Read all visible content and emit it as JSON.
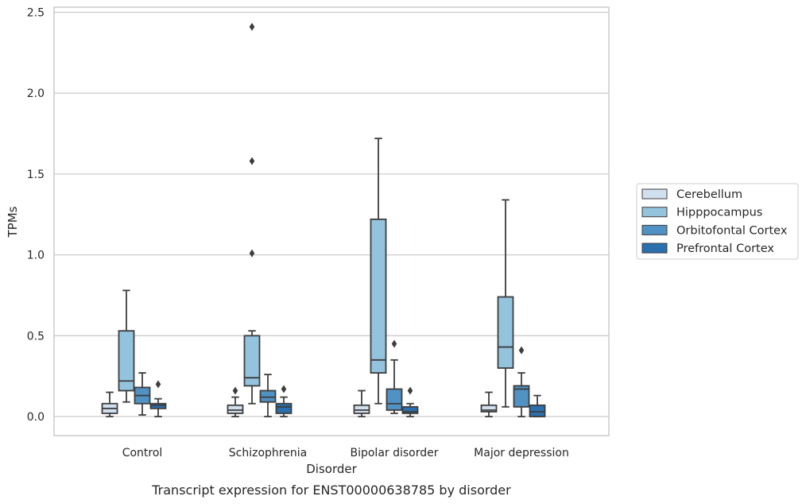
{
  "chart_data": {
    "type": "box",
    "title": "",
    "caption": "Transcript expression for ENST00000638785 by disorder",
    "xlabel": "Disorder",
    "ylabel": "TPMs",
    "ylim": [
      -0.11,
      2.54
    ],
    "yticks": [
      0.0,
      0.5,
      1.0,
      1.5,
      2.0,
      2.5
    ],
    "ytick_labels": [
      "0.0",
      "0.5",
      "1.0",
      "1.5",
      "2.0",
      "2.5"
    ],
    "grid": "horizontal",
    "legend_position": "right",
    "categories": [
      "Control",
      "Schizophrenia",
      "Bipolar disorder",
      "Major depression"
    ],
    "series": [
      {
        "name": "Cerebellum",
        "color": "#d1e0ef",
        "boxes": [
          {
            "whislo": 0.0,
            "q1": 0.02,
            "med": 0.05,
            "q3": 0.08,
            "whishi": 0.15,
            "fliers": []
          },
          {
            "whislo": 0.0,
            "q1": 0.02,
            "med": 0.04,
            "q3": 0.07,
            "whishi": 0.12,
            "fliers": [
              0.16
            ]
          },
          {
            "whislo": 0.0,
            "q1": 0.02,
            "med": 0.04,
            "q3": 0.07,
            "whishi": 0.16,
            "fliers": []
          },
          {
            "whislo": 0.0,
            "q1": 0.03,
            "med": 0.04,
            "q3": 0.07,
            "whishi": 0.15,
            "fliers": []
          }
        ]
      },
      {
        "name": "Hipppocampus",
        "color": "#94c3de",
        "boxes": [
          {
            "whislo": 0.09,
            "q1": 0.16,
            "med": 0.22,
            "q3": 0.53,
            "whishi": 0.78,
            "fliers": []
          },
          {
            "whislo": 0.08,
            "q1": 0.19,
            "med": 0.24,
            "q3": 0.5,
            "whishi": 0.53,
            "fliers": [
              1.01,
              1.58,
              2.41
            ]
          },
          {
            "whislo": 0.08,
            "q1": 0.27,
            "med": 0.35,
            "q3": 1.22,
            "whishi": 1.72,
            "fliers": []
          },
          {
            "whislo": 0.06,
            "q1": 0.3,
            "med": 0.43,
            "q3": 0.74,
            "whishi": 1.34,
            "fliers": []
          }
        ]
      },
      {
        "name": "Orbitofontal Cortex",
        "color": "#4f92c3",
        "boxes": [
          {
            "whislo": 0.01,
            "q1": 0.08,
            "med": 0.13,
            "q3": 0.18,
            "whishi": 0.27,
            "fliers": []
          },
          {
            "whislo": 0.0,
            "q1": 0.09,
            "med": 0.12,
            "q3": 0.16,
            "whishi": 0.26,
            "fliers": []
          },
          {
            "whislo": 0.02,
            "q1": 0.04,
            "med": 0.08,
            "q3": 0.17,
            "whishi": 0.35,
            "fliers": [
              0.45
            ]
          },
          {
            "whislo": 0.0,
            "q1": 0.06,
            "med": 0.17,
            "q3": 0.19,
            "whishi": 0.27,
            "fliers": [
              0.41
            ]
          }
        ]
      },
      {
        "name": "Prefrontal Cortex",
        "color": "#2a70ae",
        "boxes": [
          {
            "whislo": 0.0,
            "q1": 0.05,
            "med": 0.07,
            "q3": 0.08,
            "whishi": 0.11,
            "fliers": [
              0.2
            ]
          },
          {
            "whislo": 0.0,
            "q1": 0.02,
            "med": 0.06,
            "q3": 0.08,
            "whishi": 0.12,
            "fliers": [
              0.17
            ]
          },
          {
            "whislo": 0.0,
            "q1": 0.02,
            "med": 0.03,
            "q3": 0.06,
            "whishi": 0.08,
            "fliers": [
              0.16
            ]
          },
          {
            "whislo": 0.0,
            "q1": 0.0,
            "med": 0.03,
            "q3": 0.07,
            "whishi": 0.13,
            "fliers": []
          }
        ]
      }
    ]
  }
}
